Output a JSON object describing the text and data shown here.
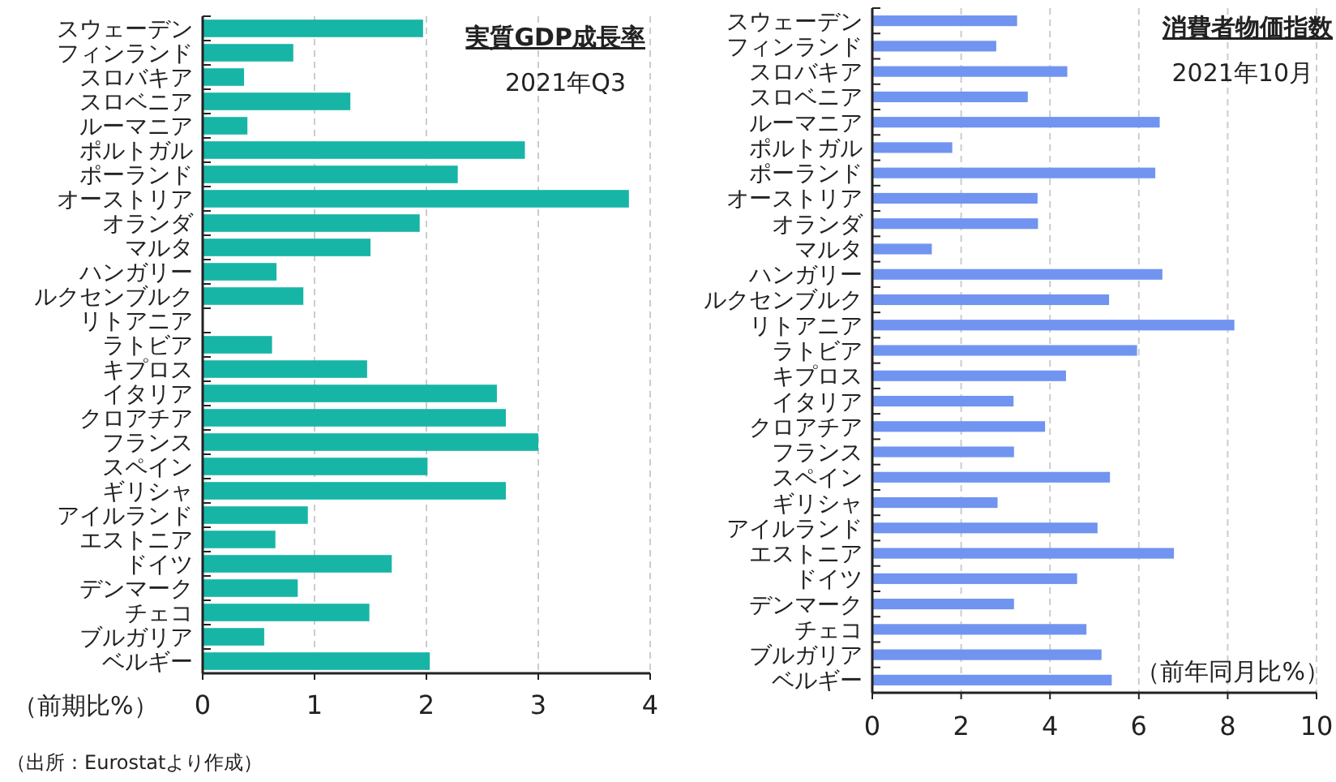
{
  "chart_data": [
    {
      "type": "bar",
      "orientation": "horizontal",
      "title": "実質GDP成長率",
      "subtitle": "2021年Q3",
      "xlabel": "（前期比%）",
      "categories": [
        "スウェーデン",
        "フィンランド",
        "スロバキア",
        "スロベニア",
        "ルーマニア",
        "ポルトガル",
        "ポーランド",
        "オーストリア",
        "オランダ",
        "マルタ",
        "ハンガリー",
        "ルクセンブルク",
        "リトアニア",
        "ラトビア",
        "キプロス",
        "イタリア",
        "クロアチア",
        "フランス",
        "スペイン",
        "ギリシャ",
        "アイルランド",
        "エストニア",
        "ドイツ",
        "デンマーク",
        "チェコ",
        "ブルガリア",
        "ベルギー"
      ],
      "values": [
        1.97,
        0.81,
        0.37,
        1.32,
        0.4,
        2.88,
        2.28,
        3.81,
        1.94,
        1.5,
        0.66,
        0.9,
        0,
        0.62,
        1.47,
        2.63,
        2.71,
        3.0,
        2.01,
        2.71,
        0.94,
        0.65,
        1.69,
        0.85,
        1.49,
        0.55,
        2.03
      ],
      "color": "#17b5a6",
      "xlim": [
        0,
        4
      ],
      "xticks": [
        0,
        1,
        2,
        3,
        4
      ],
      "grid": "x",
      "annotations": [
        "（出所：Eurostatより作成）"
      ]
    },
    {
      "type": "bar",
      "orientation": "horizontal",
      "title": "消費者物価指数",
      "subtitle": "2021年10月",
      "xlabel": "（前年同月比%）",
      "categories": [
        "スウェーデン",
        "フィンランド",
        "スロバキア",
        "スロベニア",
        "ルーマニア",
        "ポルトガル",
        "ポーランド",
        "オーストリア",
        "オランダ",
        "マルタ",
        "ハンガリー",
        "ルクセンブルク",
        "リトアニア",
        "ラトビア",
        "キプロス",
        "イタリア",
        "クロアチア",
        "フランス",
        "スペイン",
        "ギリシャ",
        "アイルランド",
        "エストニア",
        "ドイツ",
        "デンマーク",
        "チェコ",
        "ブルガリア",
        "ベルギー"
      ],
      "values": [
        3.26,
        2.79,
        4.39,
        3.5,
        6.47,
        1.8,
        6.37,
        3.72,
        3.73,
        1.34,
        6.53,
        5.33,
        8.15,
        5.96,
        4.36,
        3.18,
        3.89,
        3.19,
        5.35,
        2.82,
        5.07,
        6.79,
        4.61,
        3.19,
        4.82,
        5.16,
        5.39
      ],
      "color": "#7094f0",
      "xlim": [
        0,
        10
      ],
      "xticks": [
        0,
        2,
        4,
        6,
        8,
        10
      ],
      "grid": "x"
    }
  ]
}
